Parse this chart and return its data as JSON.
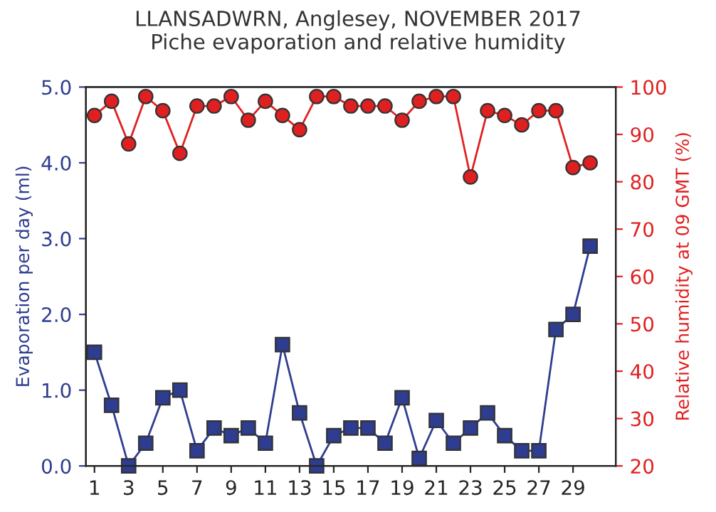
{
  "chart_data": {
    "type": "line",
    "title": "LLANSADWRN, Anglesey, NOVEMBER 2017",
    "subtitle": "Piche evaporation and relative humidity",
    "ylabel": "Evaporation per day (ml)",
    "y2label": "Relative humidity at 09 GMT (%)",
    "x": [
      1,
      2,
      3,
      4,
      5,
      6,
      7,
      8,
      9,
      10,
      11,
      12,
      13,
      14,
      15,
      16,
      17,
      18,
      19,
      20,
      21,
      22,
      23,
      24,
      25,
      26,
      27,
      28,
      29,
      30
    ],
    "xlim": [
      0.5,
      31.5
    ],
    "xticks": [
      1,
      3,
      5,
      7,
      9,
      11,
      13,
      15,
      17,
      19,
      21,
      23,
      25,
      27,
      29
    ],
    "ylim": [
      0,
      5
    ],
    "yticks": [
      {
        "value": 0,
        "label": "0.0"
      },
      {
        "value": 1,
        "label": "1.0"
      },
      {
        "value": 2,
        "label": "2.0"
      },
      {
        "value": 3,
        "label": "3.0"
      },
      {
        "value": 4,
        "label": "4.0"
      },
      {
        "value": 5,
        "label": "5.0"
      }
    ],
    "y2lim": [
      20,
      100
    ],
    "y2ticks": [
      20,
      30,
      40,
      50,
      60,
      70,
      80,
      90,
      100
    ],
    "grid": false,
    "legend": false,
    "series": [
      {
        "color": "#2e3d8f",
        "marker": "square",
        "values": [
          1.5,
          0.8,
          0,
          0.3,
          0.9,
          1.0,
          0.2,
          0.5,
          0.4,
          0.5,
          0.3,
          1.6,
          0.7,
          0,
          0.4,
          0.5,
          0.5,
          0.3,
          0.9,
          0.1,
          0.6,
          0.3,
          0.5,
          0.7,
          0.4,
          0.2,
          0.2,
          1.8,
          2.0,
          2.9
        ]
      },
      {
        "color": "#e02020",
        "marker": "circle",
        "axis": "y2",
        "values": [
          94,
          97,
          88,
          98,
          95,
          86,
          96,
          96,
          98,
          93,
          97,
          94,
          91,
          98,
          98,
          96,
          96,
          96,
          93,
          97,
          98,
          98,
          81,
          95,
          94,
          92,
          95,
          95,
          83,
          84
        ]
      }
    ]
  }
}
